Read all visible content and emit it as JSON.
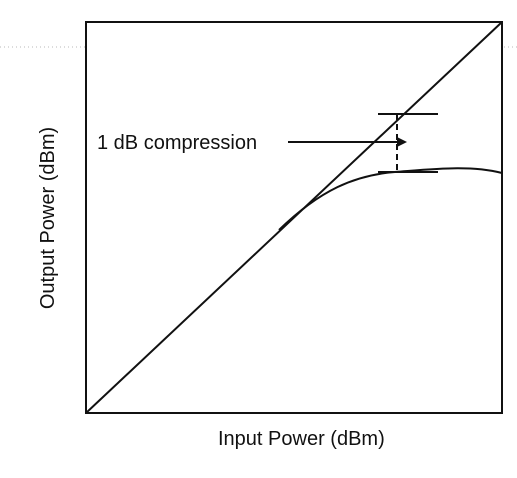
{
  "diagram": {
    "x_axis_label": "Input Power (dBm)",
    "y_axis_label": "Output Power (dBm)",
    "annotation": "1 dB compression",
    "curves": [
      {
        "role": "ideal-linear-response",
        "style": "solid"
      },
      {
        "role": "compressed-output-response",
        "style": "solid"
      }
    ],
    "colors": {
      "ink": "#111111",
      "background": "#ffffff",
      "top_guide": "#b8b8b8"
    }
  }
}
